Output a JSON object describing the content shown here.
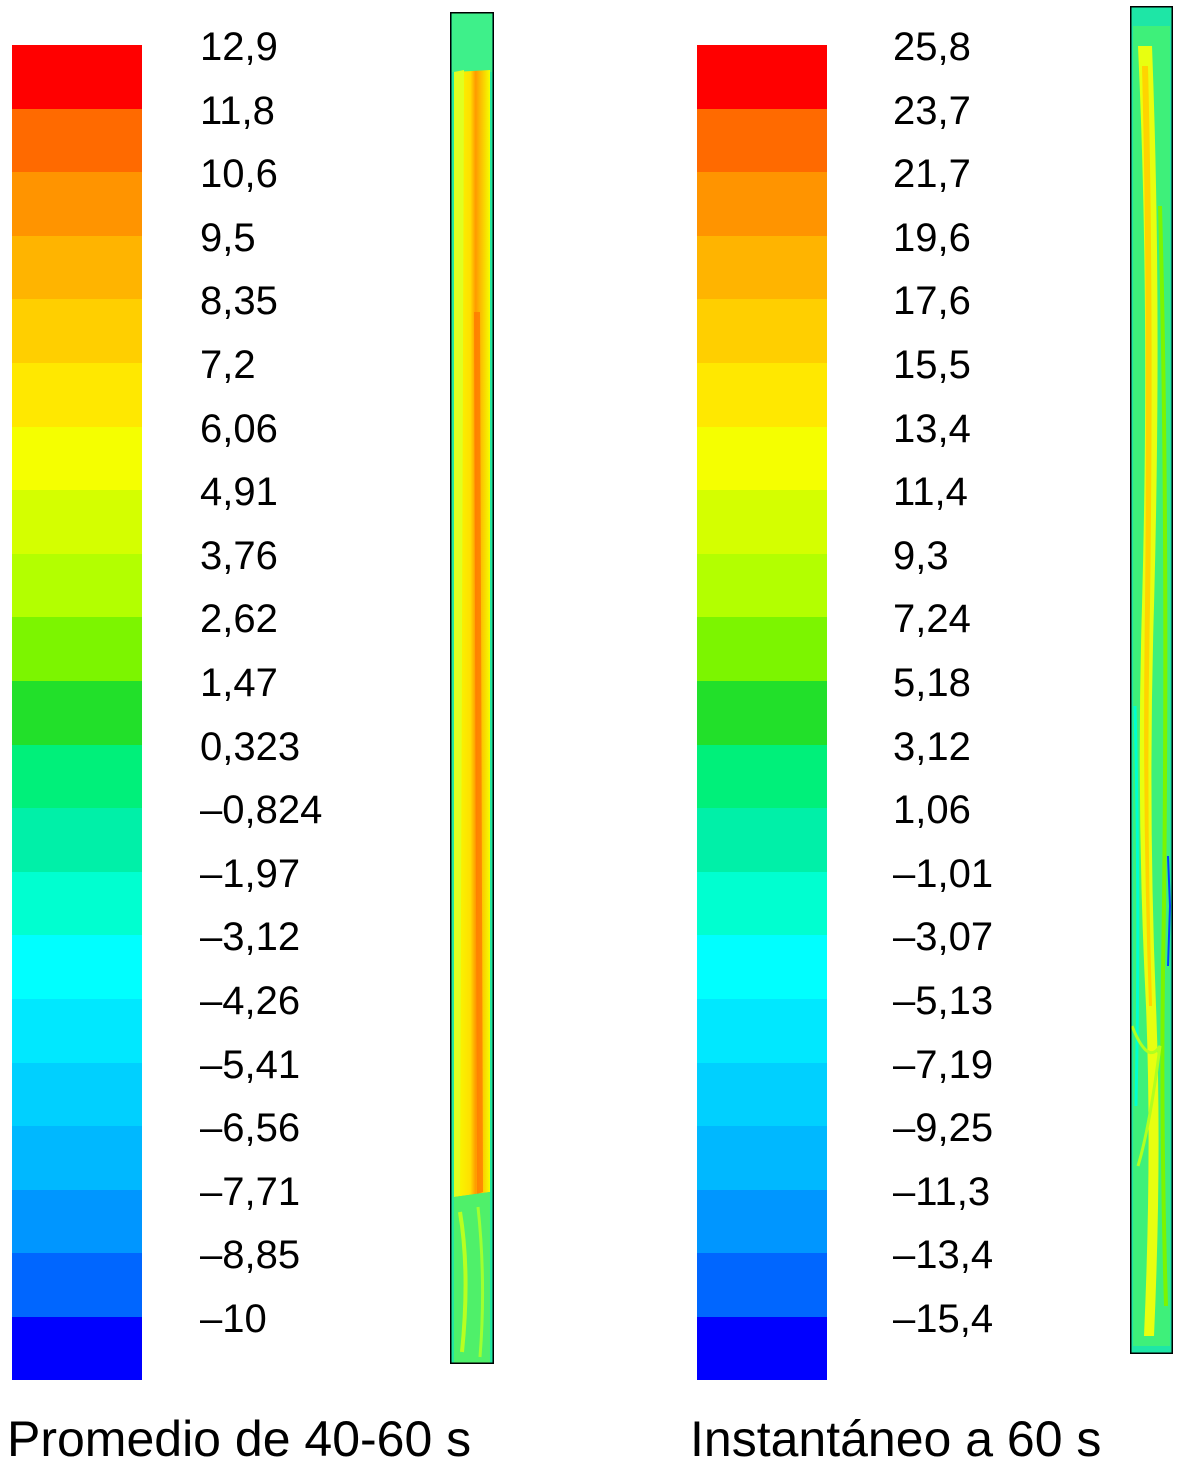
{
  "color_scale": [
    "#ff0000",
    "#ff6a00",
    "#ff9400",
    "#ffb400",
    "#ffcf00",
    "#ffe800",
    "#f5ff00",
    "#d4ff00",
    "#b3ff00",
    "#7cf500",
    "#22e02a",
    "#00f07a",
    "#00f0a8",
    "#00ffd0",
    "#00ffff",
    "#00e8ff",
    "#00d0ff",
    "#00b8ff",
    "#0096ff",
    "#0066ff",
    "#0000ff"
  ],
  "panels": [
    {
      "caption": "Promedio de 40-60 s",
      "levels": [
        "12,9",
        "11,8",
        "10,6",
        "9,5",
        "8,35",
        "7,2",
        "6,06",
        "4,91",
        "3,76",
        "2,62",
        "1,47",
        "0,323",
        "–0,824",
        "–1,97",
        "–3,12",
        "–4,26",
        "–5,41",
        "–6,56",
        "–7,71",
        "–8,85",
        "–10"
      ]
    },
    {
      "caption": "Instantáneo a 60 s",
      "levels": [
        "25,8",
        "23,7",
        "21,7",
        "19,6",
        "17,6",
        "15,5",
        "13,4",
        "11,4",
        "9,3",
        "7,24",
        "5,18",
        "3,12",
        "1,06",
        "–1,01",
        "–3,07",
        "–5,13",
        "–7,19",
        "–9,25",
        "–11,3",
        "–13,4",
        "–15,4"
      ]
    }
  ]
}
